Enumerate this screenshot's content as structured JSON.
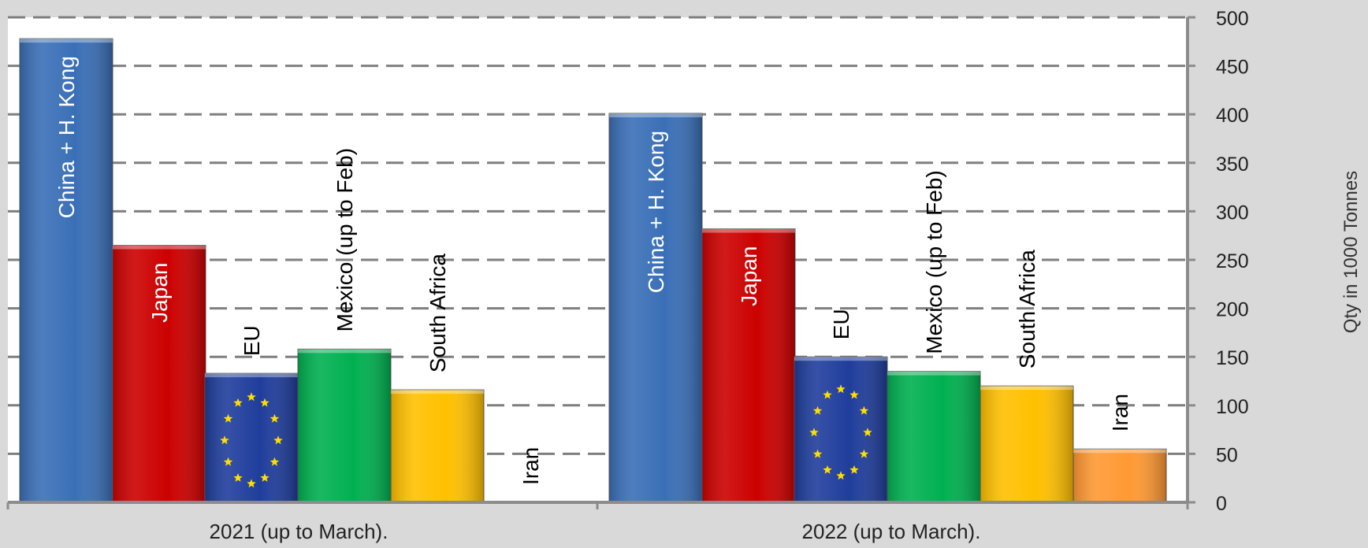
{
  "chart_data": {
    "type": "bar",
    "categories": [
      "2021 (up to March).",
      "2022 (up to March)."
    ],
    "series": [
      {
        "name": "China + H. Kong",
        "values": [
          478,
          401
        ],
        "color": "#3a6fb7"
      },
      {
        "name": "Japan",
        "values": [
          265,
          282
        ],
        "color": "#cc0000"
      },
      {
        "name": "EU",
        "values": [
          133,
          150
        ],
        "color": "#1f3d9c"
      },
      {
        "name": "Mexico (up to Feb)",
        "values": [
          158,
          135
        ],
        "color": "#00b050"
      },
      {
        "name": "South Africa",
        "values": [
          116,
          120
        ],
        "color": "#ffc000"
      },
      {
        "name": "Iran",
        "values": [
          0,
          55
        ],
        "color": "#ff9933"
      }
    ],
    "ylabel": "Qty in 1000 Tonnes",
    "ylim": [
      0,
      500
    ],
    "yticks": [
      0,
      50,
      100,
      150,
      200,
      250,
      300,
      350,
      400,
      450,
      500
    ],
    "grid": true,
    "y_axis_position": "right",
    "bar_label_style": "rotated vertical text"
  }
}
